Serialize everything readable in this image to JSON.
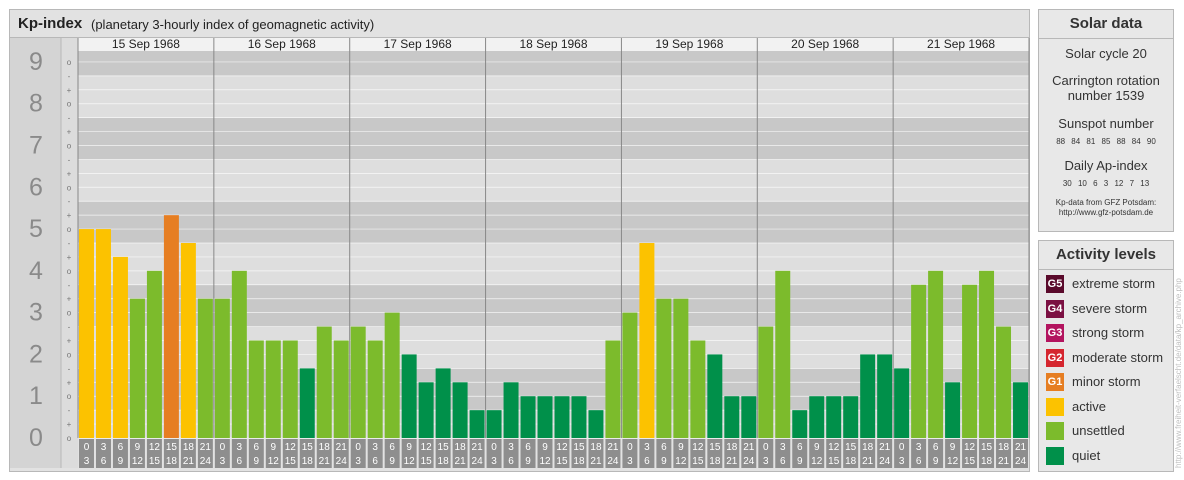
{
  "header": {
    "title": "Kp-index",
    "subtitle": "(planetary 3-hourly index of geomagnetic activity)"
  },
  "solar_data": {
    "title": "Solar data",
    "cycle": "Solar cycle 20",
    "carrington_line1": "Carrington rotation",
    "carrington_line2": "number 1539",
    "sunspot_title": "Sunspot number",
    "sunspot_values": "88 84 81 85 88 84 90",
    "ap_title": "Daily Ap-index",
    "ap_values": "30 10 6 3 12 7 13",
    "source_line1": "Kp-data from GFZ Potsdam:",
    "source_line2": "http://www.gfz-potsdam.de"
  },
  "activity_levels": {
    "title": "Activity levels",
    "items": [
      {
        "code": "G5",
        "label": "extreme storm",
        "color": "#5a0a2b"
      },
      {
        "code": "G4",
        "label": "severe storm",
        "color": "#7b1042"
      },
      {
        "code": "G3",
        "label": "strong storm",
        "color": "#b3145f"
      },
      {
        "code": "G2",
        "label": "moderate storm",
        "color": "#d5262f"
      },
      {
        "code": "G1",
        "label": "minor storm",
        "color": "#e67e22"
      },
      {
        "code": "",
        "label": "active",
        "color": "#fcc200"
      },
      {
        "code": "",
        "label": "unsettled",
        "color": "#7cbb2c"
      },
      {
        "code": "",
        "label": "quiet",
        "color": "#00904a"
      }
    ]
  },
  "watermark": "http://www.freiheit-verfaelscht.de/data/kp_archive.php",
  "chart_data": {
    "type": "bar",
    "title": "Kp-index",
    "ylim": [
      0,
      9
    ],
    "yticks": [
      "0",
      "1",
      "2",
      "3",
      "4",
      "5",
      "6",
      "7",
      "8",
      "9"
    ],
    "minor_tick_marks": [
      "o",
      "+",
      "-"
    ],
    "days": [
      "15 Sep 1968",
      "16 Sep 1968",
      "17 Sep 1968",
      "18 Sep 1968",
      "19 Sep 1968",
      "20 Sep 1968",
      "21 Sep 1968"
    ],
    "interval_starts": [
      "0",
      "3",
      "6",
      "9",
      "12",
      "15",
      "18",
      "21"
    ],
    "interval_ends": [
      "3",
      "6",
      "9",
      "12",
      "15",
      "18",
      "21",
      "24"
    ],
    "series": [
      {
        "values": [
          4.667,
          4.667,
          4.0,
          3.0,
          3.667,
          5.0,
          4.333,
          3.0,
          3.0,
          3.667,
          2.0,
          2.0,
          2.0,
          1.333,
          2.333,
          2.0,
          2.333,
          2.0,
          2.667,
          1.667,
          1.0,
          1.333,
          1.0,
          0.333,
          0.333,
          1.0,
          0.667,
          0.667,
          0.667,
          0.667,
          0.333,
          2.0,
          2.667,
          4.333,
          3.0,
          3.0,
          2.0,
          1.667,
          0.667,
          0.667,
          2.333,
          3.667,
          0.333,
          0.667,
          0.667,
          0.667,
          1.667,
          1.667,
          1.333,
          3.333,
          3.667,
          1.0,
          3.333,
          3.667,
          2.333,
          1.0
        ]
      }
    ]
  }
}
